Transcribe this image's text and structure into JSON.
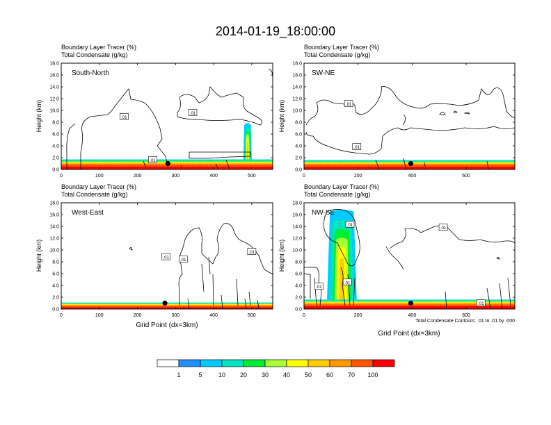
{
  "figure": {
    "title": "2014-01-19_18:00:00",
    "footnote": "Total Condensate Contours: .01 to .01 by .000",
    "x_label": "Grid Point (dx=3km)"
  },
  "colorbar": {
    "labels": [
      "1",
      "5",
      "10",
      "20",
      "30",
      "40",
      "50",
      "60",
      "70",
      "100"
    ],
    "colors": [
      "#ffffff",
      "#1e90ff",
      "#00ccff",
      "#00e5c0",
      "#00ee33",
      "#aaff33",
      "#ffff00",
      "#ffcc00",
      "#ff9900",
      "#ff5500",
      "#ff0000"
    ]
  },
  "chart_data": [
    {
      "type": "heatmap",
      "panel_label": "South-North",
      "header_line1": "Boundary Layer Tracer    (%)",
      "header_line2": "Total Condensate    (g/kg)",
      "ylabel": "Height (km)",
      "xlabel": "",
      "xlim": [
        0,
        555
      ],
      "ylim": [
        0,
        18
      ],
      "xticks": [
        0,
        100,
        200,
        300,
        400,
        500
      ],
      "yticks": [
        "0.0",
        "2.0",
        "4.0",
        "6.0",
        "8.0",
        "10.0",
        "12.0",
        "14.0",
        "16.0",
        "18.0"
      ],
      "contour_labels": [
        {
          "text": ".01",
          "x": 165,
          "y": 8.9
        },
        {
          "text": ".01",
          "x": 345,
          "y": 9.6
        },
        {
          "text": ".01",
          "x": 240,
          "y": 1.6
        }
      ],
      "marker": {
        "x": 280,
        "y": 1.0
      },
      "boundary_layer_top_km": 1.7,
      "convective_column": {
        "x_range": [
          478,
          500
        ],
        "top_km": 7.5
      }
    },
    {
      "type": "heatmap",
      "panel_label": "SW-NE",
      "header_line1": "Boundary Layer Tracer    (%)",
      "header_line2": "Total Condensate    (g/kg)",
      "ylabel": "Height (km)",
      "xlabel": "",
      "xlim": [
        0,
        780
      ],
      "ylim": [
        0,
        18
      ],
      "xticks": [
        0,
        200,
        400,
        600
      ],
      "yticks": [
        "0.0",
        "2.0",
        "4.0",
        "6.0",
        "8.0",
        "10.0",
        "12.0",
        "14.0",
        "16.0",
        "18.0"
      ],
      "contour_labels": [
        {
          "text": ".01",
          "x": 165,
          "y": 11.1
        },
        {
          "text": ".01",
          "x": 195,
          "y": 3.8
        }
      ],
      "marker": {
        "x": 395,
        "y": 1.0
      },
      "boundary_layer_top_km": 1.6
    },
    {
      "type": "heatmap",
      "panel_label": "West-East",
      "header_line1": "Boundary Layer Tracer    (%)",
      "header_line2": "Total Condensate    (g/kg)",
      "ylabel": "Height (km)",
      "xlabel": "Grid Point (dx=3km)",
      "xlim": [
        0,
        555
      ],
      "ylim": [
        0,
        18
      ],
      "xticks": [
        0,
        100,
        200,
        300,
        400,
        500
      ],
      "yticks": [
        "0.0",
        "2.0",
        "4.0",
        "6.0",
        "8.0",
        "10.0",
        "12.0",
        "14.0",
        "16.0",
        "18.0"
      ],
      "contour_labels": [
        {
          "text": ".01",
          "x": 275,
          "y": 8.8
        },
        {
          "text": ".01",
          "x": 320,
          "y": 8.4
        },
        {
          "text": ".01",
          "x": 500,
          "y": 9.7
        }
      ],
      "marker": {
        "x": 272,
        "y": 1.0
      },
      "boundary_layer_top_km": 1.1
    },
    {
      "type": "heatmap",
      "panel_label": "NW-SE",
      "header_line1": "Boundary Layer Tracer    (%)",
      "header_line2": "Total Condensate    (g/kg)",
      "ylabel": "Height (km)",
      "xlabel": "Grid Point (dx=3km)",
      "xlim": [
        0,
        780
      ],
      "ylim": [
        0,
        18
      ],
      "xticks": [
        0,
        200,
        400,
        600
      ],
      "yticks": [
        "0.0",
        "2.0",
        "4.0",
        "6.0",
        "8.0",
        "10.0",
        "12.0",
        "14.0",
        "16.0",
        "18.0"
      ],
      "contour_labels": [
        {
          "text": ".01",
          "x": 170,
          "y": 14.3
        },
        {
          "text": ".01",
          "x": 55,
          "y": 3.8
        },
        {
          "text": ".01",
          "x": 160,
          "y": 4.5
        },
        {
          "text": ".01",
          "x": 515,
          "y": 13.8
        },
        {
          "text": ".01",
          "x": 655,
          "y": 1.0
        }
      ],
      "marker": {
        "x": 395,
        "y": 1.0
      },
      "boundary_layer_top_km": 1.6,
      "convective_column": {
        "x_range": [
          85,
          195
        ],
        "top_km": 16.5
      }
    }
  ]
}
